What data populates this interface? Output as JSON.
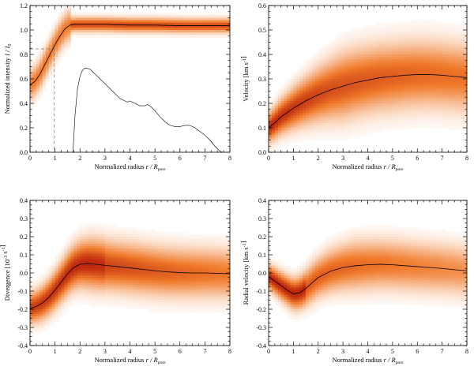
{
  "figure": {
    "colors": {
      "density_light": "#fff3e6",
      "density_mid": "#f07a2a",
      "density_dark": "#b41a08",
      "line": "#000000",
      "guide": "#777777"
    }
  },
  "chart_data": [
    {
      "type": "heatmap",
      "panel": "top-left",
      "xlabel_text": "Normalized radius",
      "xlabel_math": "r / R",
      "xlabel_sub": "pore",
      "ylabel_text": "Normalized intensity",
      "ylabel_math": "I / I",
      "ylabel_sub": "0",
      "xlim": [
        0,
        8
      ],
      "ylim": [
        0,
        1.2
      ],
      "xticks": [
        0,
        1,
        2,
        3,
        4,
        5,
        6,
        7,
        8
      ],
      "yticks": [
        0.0,
        0.2,
        0.4,
        0.6,
        0.8,
        1.0,
        1.2
      ],
      "ytick_labels": [
        "0.0",
        "0.2",
        "0.4",
        "0.6",
        "0.8",
        "1.0",
        "1.2"
      ],
      "series": [
        {
          "kind": "mean",
          "x": [
            0,
            0.2,
            0.4,
            0.6,
            0.8,
            1.0,
            1.2,
            1.4,
            1.6,
            1.8,
            2.0,
            2.5,
            3,
            4,
            5,
            6,
            7,
            8
          ],
          "y": [
            0.55,
            0.58,
            0.64,
            0.72,
            0.8,
            0.88,
            0.95,
            1.01,
            1.04,
            1.045,
            1.045,
            1.045,
            1.045,
            1.04,
            1.04,
            1.035,
            1.035,
            1.035
          ]
        },
        {
          "kind": "distribution",
          "x": [
            1.72,
            1.8,
            1.9,
            2.0,
            2.1,
            2.2,
            2.4,
            2.6,
            2.8,
            3.0,
            3.3,
            3.6,
            3.8,
            3.9,
            4.0,
            4.1,
            4.2,
            4.4,
            4.6,
            4.7,
            4.8,
            5.0,
            5.2,
            5.4,
            5.6,
            5.8,
            6.0,
            6.2,
            6.4,
            6.6,
            6.8,
            7.0,
            7.2,
            7.4,
            7.6,
            7.7
          ],
          "y": [
            0.0,
            0.3,
            0.52,
            0.62,
            0.67,
            0.69,
            0.68,
            0.64,
            0.6,
            0.56,
            0.5,
            0.44,
            0.42,
            0.41,
            0.42,
            0.41,
            0.4,
            0.38,
            0.38,
            0.39,
            0.38,
            0.34,
            0.29,
            0.25,
            0.22,
            0.21,
            0.21,
            0.22,
            0.22,
            0.2,
            0.17,
            0.14,
            0.1,
            0.05,
            0.01,
            0.0
          ]
        }
      ],
      "reference": {
        "x": 0.96,
        "y": 0.845
      },
      "density": {
        "kind": "intensity"
      }
    },
    {
      "type": "heatmap",
      "panel": "top-right",
      "xlabel_text": "Normalized radius",
      "xlabel_math": "r / R",
      "xlabel_sub": "pore",
      "ylabel_text": "Velocity",
      "ylabel_unit": "[km s",
      "ylabel_sup": "-1",
      "ylabel_close": "]",
      "xlim": [
        0,
        8
      ],
      "ylim": [
        0,
        0.6
      ],
      "xticks": [
        0,
        1,
        2,
        3,
        4,
        5,
        6,
        7,
        8
      ],
      "yticks": [
        0.0,
        0.1,
        0.2,
        0.3,
        0.4,
        0.5,
        0.6
      ],
      "ytick_labels": [
        "0.0",
        "0.1",
        "0.2",
        "0.3",
        "0.4",
        "0.5",
        "0.6"
      ],
      "series": [
        {
          "kind": "mean",
          "x": [
            0,
            0.25,
            0.5,
            1.0,
            1.5,
            2.0,
            2.5,
            3.0,
            3.5,
            4.0,
            4.5,
            5.0,
            5.5,
            6.0,
            6.5,
            7.0,
            7.5,
            8.0
          ],
          "y": [
            0.1,
            0.12,
            0.145,
            0.18,
            0.21,
            0.235,
            0.255,
            0.27,
            0.285,
            0.295,
            0.305,
            0.31,
            0.315,
            0.318,
            0.318,
            0.315,
            0.31,
            0.305
          ]
        }
      ],
      "density": {
        "kind": "velocity"
      }
    },
    {
      "type": "heatmap",
      "panel": "bottom-left",
      "xlabel_text": "Normalized radius",
      "xlabel_math": "r / R",
      "xlabel_sub": "pore",
      "ylabel_text": "Divergence",
      "ylabel_unit": "[10",
      "ylabel_sup": "-3",
      "ylabel_unit2": " s",
      "ylabel_sup2": "-1",
      "ylabel_close": "]",
      "xlim": [
        0,
        8
      ],
      "ylim": [
        -0.4,
        0.4
      ],
      "xticks": [
        0,
        1,
        2,
        3,
        4,
        5,
        6,
        7,
        8
      ],
      "yticks": [
        -0.4,
        -0.3,
        -0.2,
        -0.1,
        0.0,
        0.1,
        0.2,
        0.3,
        0.4
      ],
      "ytick_labels": [
        "-0.4",
        "-0.3",
        "-0.2",
        "-0.1",
        "0.0",
        "0.1",
        "0.2",
        "0.3",
        "0.4"
      ],
      "series": [
        {
          "kind": "mean",
          "x": [
            0,
            0.25,
            0.5,
            0.75,
            1.0,
            1.25,
            1.5,
            1.75,
            2.0,
            2.25,
            2.5,
            3.0,
            3.5,
            4.0,
            4.5,
            5.0,
            5.5,
            6.0,
            6.5,
            7.0,
            7.5,
            8.0
          ],
          "y": [
            -0.195,
            -0.185,
            -0.165,
            -0.135,
            -0.095,
            -0.05,
            -0.005,
            0.03,
            0.048,
            0.052,
            0.05,
            0.042,
            0.035,
            0.028,
            0.02,
            0.012,
            0.006,
            0.002,
            0.0,
            0.0,
            -0.002,
            -0.005
          ]
        }
      ],
      "density": {
        "kind": "divergence"
      }
    },
    {
      "type": "heatmap",
      "panel": "bottom-right",
      "xlabel_text": "Normalized radius",
      "xlabel_math": "r / R",
      "xlabel_sub": "pore",
      "ylabel_text": "Radial velocity",
      "ylabel_unit": "[km s",
      "ylabel_sup": "-1",
      "ylabel_close": "]",
      "xlim": [
        0,
        8
      ],
      "ylim": [
        -0.4,
        0.4
      ],
      "xticks": [
        0,
        1,
        2,
        3,
        4,
        5,
        6,
        7,
        8
      ],
      "yticks": [
        -0.4,
        -0.3,
        -0.2,
        -0.1,
        0.0,
        0.1,
        0.2,
        0.3,
        0.4
      ],
      "ytick_labels": [
        "-0.4",
        "-0.3",
        "-0.2",
        "-0.1",
        "0.0",
        "0.1",
        "0.2",
        "0.3",
        "0.4"
      ],
      "series": [
        {
          "kind": "mean",
          "x": [
            0,
            0.25,
            0.5,
            0.75,
            1.0,
            1.25,
            1.5,
            1.75,
            2.0,
            2.5,
            3.0,
            3.5,
            4.0,
            4.5,
            5.0,
            5.5,
            6.0,
            6.5,
            7.0,
            7.5,
            8.0
          ],
          "y": [
            -0.02,
            -0.045,
            -0.07,
            -0.095,
            -0.115,
            -0.11,
            -0.085,
            -0.055,
            -0.025,
            0.01,
            0.03,
            0.04,
            0.045,
            0.048,
            0.045,
            0.04,
            0.035,
            0.03,
            0.025,
            0.018,
            0.012
          ]
        }
      ],
      "density": {
        "kind": "radial"
      }
    }
  ]
}
